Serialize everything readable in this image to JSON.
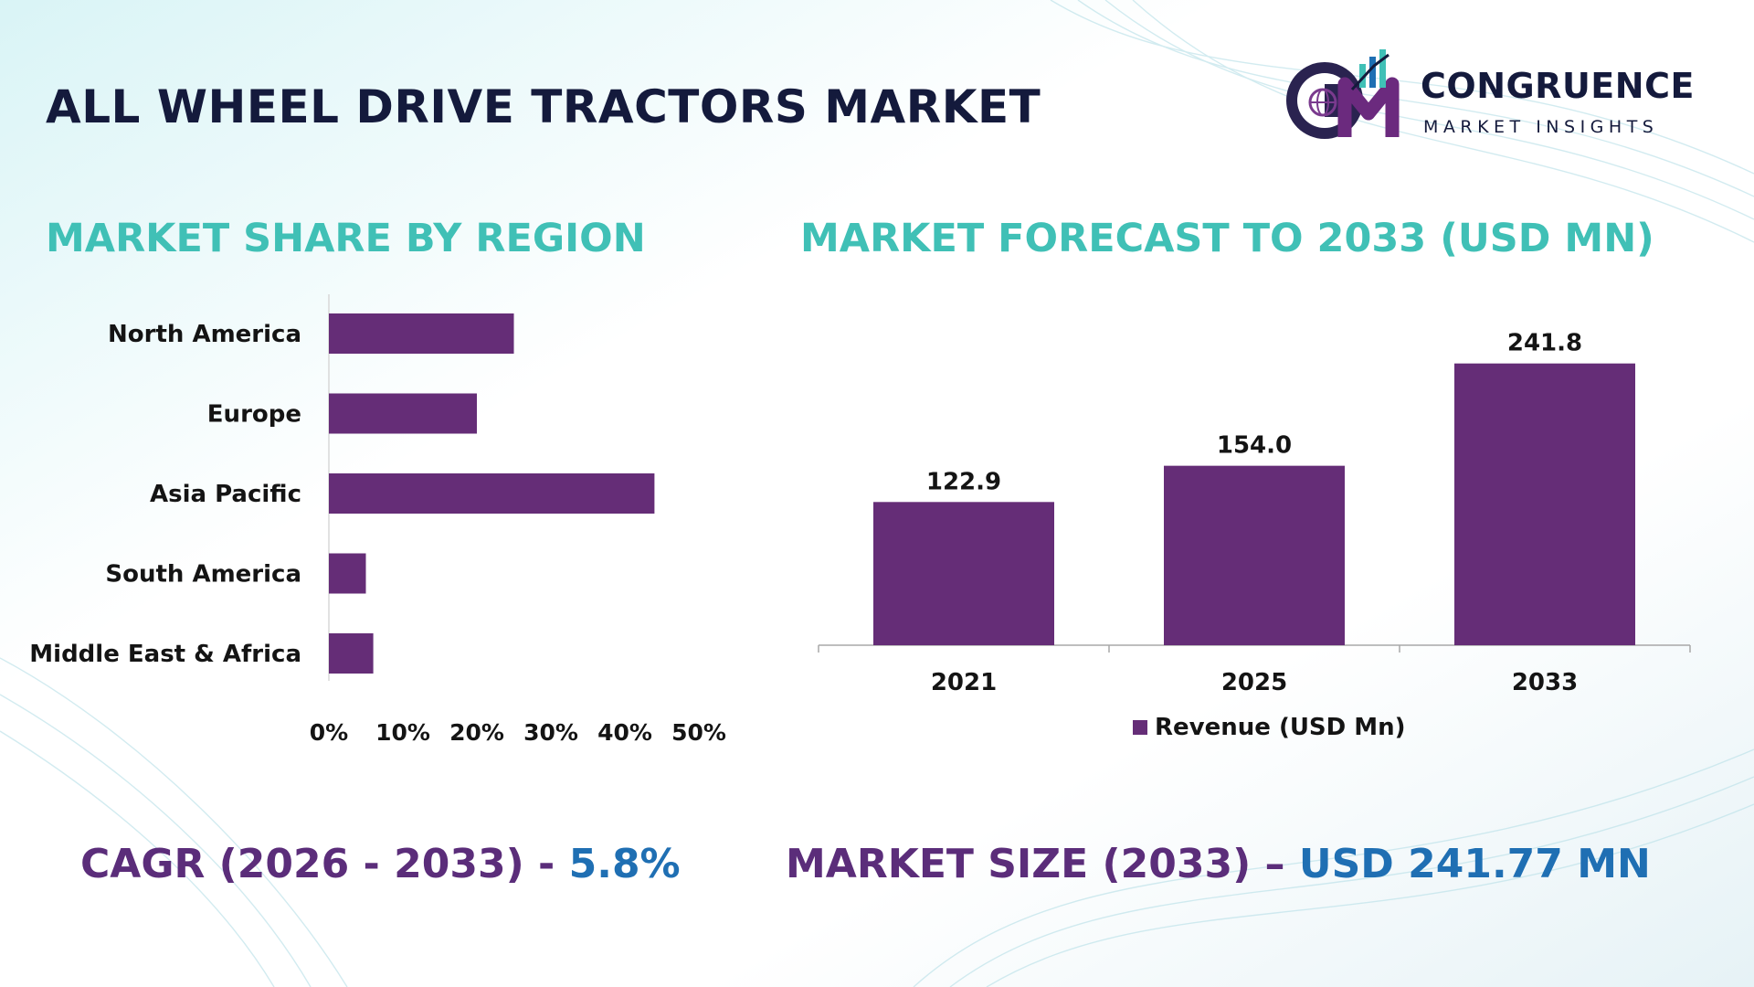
{
  "title": "ALL WHEEL DRIVE TRACTORS MARKET",
  "logo": {
    "name": "CONGRUENCE",
    "sub": "MARKET INSIGHTS",
    "mark": "cm-globe-chart-logo"
  },
  "colors": {
    "bar": "#652d77",
    "heading_teal": "#40c0b6",
    "title_navy": "#141a3c",
    "footer_purple": "#5b2d7a",
    "footer_blue": "#1f6fb3"
  },
  "region_chart": {
    "heading": "MARKET SHARE BY REGION"
  },
  "forecast_chart": {
    "heading": "MARKET FORECAST TO 2033 (USD MN)"
  },
  "footer": {
    "cagr_label": "CAGR (2026 - 2033) - ",
    "cagr_value": "5.8%",
    "size_label": "MARKET SIZE (2033) – ",
    "size_value": "USD 241.77 MN"
  },
  "chart_data": [
    {
      "type": "bar",
      "orientation": "horizontal",
      "title": "MARKET SHARE BY REGION",
      "categories": [
        "North America",
        "Europe",
        "Asia Pacific",
        "South America",
        "Middle East & Africa"
      ],
      "values": [
        25,
        20,
        44,
        5,
        6
      ],
      "xlim": [
        0,
        50
      ],
      "xticks": [
        "0%",
        "10%",
        "20%",
        "30%",
        "40%",
        "50%"
      ],
      "grid": false
    },
    {
      "type": "bar",
      "title": "MARKET FORECAST TO 2033 (USD MN)",
      "categories": [
        "2021",
        "2025",
        "2033"
      ],
      "series": [
        {
          "name": "Revenue (USD Mn)",
          "values": [
            122.9,
            154.0,
            241.8
          ]
        }
      ],
      "value_labels": [
        "122.9",
        "154.0",
        "241.8"
      ],
      "ylim": [
        0,
        260
      ],
      "legend": "bottom",
      "grid": false
    }
  ]
}
